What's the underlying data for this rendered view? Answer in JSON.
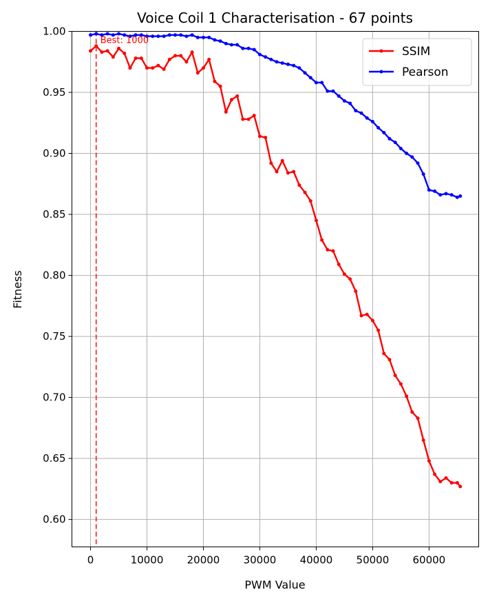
{
  "chart_data": {
    "type": "line",
    "title": "Voice Coil 1 Characterisation - 67 points",
    "xlabel": "PWM Value",
    "ylabel": "Fitness",
    "xlim": [
      -3300,
      68800
    ],
    "ylim": [
      0.5775,
      1.0
    ],
    "xticks": [
      0,
      10000,
      20000,
      30000,
      40000,
      50000,
      60000
    ],
    "yticks": [
      0.6,
      0.65,
      0.7,
      0.75,
      0.8,
      0.85,
      0.9,
      0.95,
      1.0
    ],
    "xtick_labels": [
      "0",
      "10000",
      "20000",
      "30000",
      "40000",
      "50000",
      "60000"
    ],
    "ytick_labels": [
      "0.60",
      "0.65",
      "0.70",
      "0.75",
      "0.80",
      "0.85",
      "0.90",
      "0.95",
      "1.00"
    ],
    "grid": true,
    "legend_position": "top-right",
    "annotation": {
      "text": "Best: 1000",
      "x": 1000,
      "color": "#ff0000"
    },
    "x": [
      0,
      1000,
      2000,
      3000,
      4000,
      5000,
      6000,
      7000,
      8000,
      9000,
      10000,
      11000,
      12000,
      13000,
      14000,
      15000,
      16000,
      17000,
      18000,
      19000,
      20000,
      21000,
      22000,
      23000,
      24000,
      25000,
      26000,
      27000,
      28000,
      29000,
      30000,
      31000,
      32000,
      33000,
      34000,
      35000,
      36000,
      37000,
      38000,
      39000,
      40000,
      41000,
      42000,
      43000,
      44000,
      45000,
      46000,
      47000,
      48000,
      49000,
      50000,
      51000,
      52000,
      53000,
      54000,
      55000,
      56000,
      57000,
      58000,
      59000,
      60000,
      61000,
      62000,
      63000,
      64000,
      65000,
      65535
    ],
    "series": [
      {
        "name": "SSIM",
        "color": "#ff0000",
        "values": [
          0.984,
          0.988,
          0.983,
          0.984,
          0.979,
          0.986,
          0.982,
          0.97,
          0.978,
          0.978,
          0.97,
          0.97,
          0.972,
          0.969,
          0.977,
          0.98,
          0.98,
          0.975,
          0.983,
          0.966,
          0.97,
          0.977,
          0.959,
          0.955,
          0.934,
          0.944,
          0.947,
          0.928,
          0.928,
          0.931,
          0.914,
          0.913,
          0.892,
          0.885,
          0.894,
          0.884,
          0.885,
          0.874,
          0.868,
          0.861,
          0.845,
          0.829,
          0.821,
          0.82,
          0.809,
          0.801,
          0.797,
          0.787,
          0.767,
          0.768,
          0.763,
          0.755,
          0.736,
          0.731,
          0.718,
          0.711,
          0.701,
          0.688,
          0.683,
          0.665,
          0.648,
          0.637,
          0.631,
          0.634,
          0.63,
          0.63,
          0.627
        ]
      },
      {
        "name": "Pearson",
        "color": "#0000ff",
        "values": [
          0.997,
          0.998,
          0.997,
          0.998,
          0.997,
          0.998,
          0.997,
          0.996,
          0.997,
          0.997,
          0.996,
          0.996,
          0.996,
          0.996,
          0.997,
          0.997,
          0.997,
          0.996,
          0.997,
          0.995,
          0.995,
          0.995,
          0.993,
          0.992,
          0.99,
          0.989,
          0.989,
          0.986,
          0.986,
          0.985,
          0.981,
          0.979,
          0.977,
          0.975,
          0.974,
          0.973,
          0.972,
          0.97,
          0.966,
          0.962,
          0.958,
          0.958,
          0.951,
          0.951,
          0.947,
          0.943,
          0.941,
          0.935,
          0.933,
          0.929,
          0.926,
          0.921,
          0.917,
          0.912,
          0.909,
          0.904,
          0.9,
          0.897,
          0.892,
          0.883,
          0.87,
          0.869,
          0.866,
          0.867,
          0.866,
          0.864,
          0.865
        ]
      }
    ]
  }
}
